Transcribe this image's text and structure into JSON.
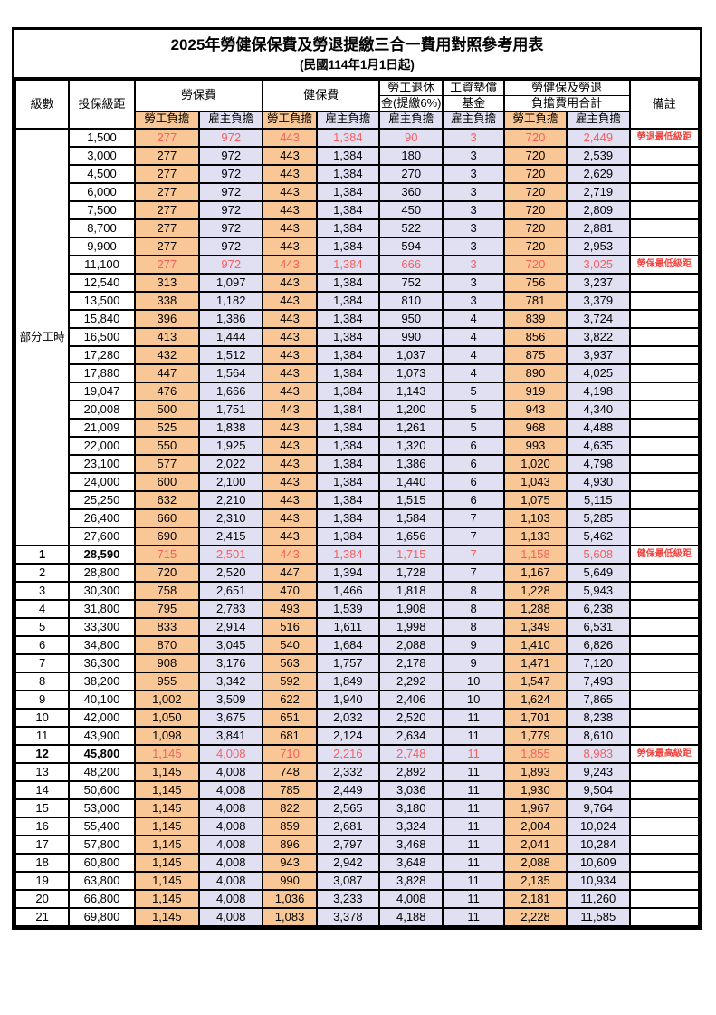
{
  "title": "2025年勞健保保費及勞退提繳三合一費用對照參考用表",
  "subtitle": "(民國114年1月1日起)",
  "colors": {
    "employee_bg": "#F9C795",
    "employer_bg": "#E0E0F2",
    "red_value": "#F75F5F",
    "red_remark": "#F2423D",
    "border": "#000000"
  },
  "header": {
    "level": "級數",
    "bracket": "投保級距",
    "labor_insurance": "勞保費",
    "health_insurance": "健保費",
    "pension_line1": "勞工退休",
    "pension_line2": "金(提繳6%)",
    "wage_fund_line1": "工資墊償",
    "wage_fund_line2": "基金",
    "total_line1": "勞健保及勞退",
    "total_line2": "負擔費用合計",
    "remark": "備註",
    "employee_share": "勞工負擔",
    "employer_share": "雇主負擔"
  },
  "part_time_label": "部分工時",
  "part_time_rowspan": 23,
  "chart_data": {
    "type": "table",
    "title": "2025年勞健保保費及勞退提繳三合一費用對照參考用表",
    "columns": [
      "級數",
      "投保級距",
      "勞保費-勞工負擔",
      "勞保費-雇主負擔",
      "健保費-勞工負擔",
      "健保費-雇主負擔",
      "勞工退休金(提繳6%)-雇主負擔",
      "工資墊償基金-雇主負擔",
      "合計-勞工負擔",
      "合計-雇主負擔",
      "備註"
    ]
  },
  "rows": [
    {
      "level": "",
      "bracket": "1,500",
      "cells": [
        "277",
        "972",
        "443",
        "1,384",
        "90",
        "3",
        "720",
        "2,449"
      ],
      "remark": "勞退最低級距",
      "highlight": true,
      "bold": false
    },
    {
      "level": "",
      "bracket": "3,000",
      "cells": [
        "277",
        "972",
        "443",
        "1,384",
        "180",
        "3",
        "720",
        "2,539"
      ],
      "remark": "",
      "highlight": false,
      "bold": false
    },
    {
      "level": "",
      "bracket": "4,500",
      "cells": [
        "277",
        "972",
        "443",
        "1,384",
        "270",
        "3",
        "720",
        "2,629"
      ],
      "remark": "",
      "highlight": false,
      "bold": false
    },
    {
      "level": "",
      "bracket": "6,000",
      "cells": [
        "277",
        "972",
        "443",
        "1,384",
        "360",
        "3",
        "720",
        "2,719"
      ],
      "remark": "",
      "highlight": false,
      "bold": false
    },
    {
      "level": "",
      "bracket": "7,500",
      "cells": [
        "277",
        "972",
        "443",
        "1,384",
        "450",
        "3",
        "720",
        "2,809"
      ],
      "remark": "",
      "highlight": false,
      "bold": false
    },
    {
      "level": "",
      "bracket": "8,700",
      "cells": [
        "277",
        "972",
        "443",
        "1,384",
        "522",
        "3",
        "720",
        "2,881"
      ],
      "remark": "",
      "highlight": false,
      "bold": false
    },
    {
      "level": "",
      "bracket": "9,900",
      "cells": [
        "277",
        "972",
        "443",
        "1,384",
        "594",
        "3",
        "720",
        "2,953"
      ],
      "remark": "",
      "highlight": false,
      "bold": false
    },
    {
      "level": "",
      "bracket": "11,100",
      "cells": [
        "277",
        "972",
        "443",
        "1,384",
        "666",
        "3",
        "720",
        "3,025"
      ],
      "remark": "勞保最低級距",
      "highlight": true,
      "bold": false
    },
    {
      "level": "",
      "bracket": "12,540",
      "cells": [
        "313",
        "1,097",
        "443",
        "1,384",
        "752",
        "3",
        "756",
        "3,237"
      ],
      "remark": "",
      "highlight": false,
      "bold": false
    },
    {
      "level": "",
      "bracket": "13,500",
      "cells": [
        "338",
        "1,182",
        "443",
        "1,384",
        "810",
        "3",
        "781",
        "3,379"
      ],
      "remark": "",
      "highlight": false,
      "bold": false
    },
    {
      "level": "",
      "bracket": "15,840",
      "cells": [
        "396",
        "1,386",
        "443",
        "1,384",
        "950",
        "4",
        "839",
        "3,724"
      ],
      "remark": "",
      "highlight": false,
      "bold": false
    },
    {
      "level": "",
      "bracket": "16,500",
      "cells": [
        "413",
        "1,444",
        "443",
        "1,384",
        "990",
        "4",
        "856",
        "3,822"
      ],
      "remark": "",
      "highlight": false,
      "bold": false
    },
    {
      "level": "",
      "bracket": "17,280",
      "cells": [
        "432",
        "1,512",
        "443",
        "1,384",
        "1,037",
        "4",
        "875",
        "3,937"
      ],
      "remark": "",
      "highlight": false,
      "bold": false
    },
    {
      "level": "",
      "bracket": "17,880",
      "cells": [
        "447",
        "1,564",
        "443",
        "1,384",
        "1,073",
        "4",
        "890",
        "4,025"
      ],
      "remark": "",
      "highlight": false,
      "bold": false
    },
    {
      "level": "",
      "bracket": "19,047",
      "cells": [
        "476",
        "1,666",
        "443",
        "1,384",
        "1,143",
        "5",
        "919",
        "4,198"
      ],
      "remark": "",
      "highlight": false,
      "bold": false
    },
    {
      "level": "",
      "bracket": "20,008",
      "cells": [
        "500",
        "1,751",
        "443",
        "1,384",
        "1,200",
        "5",
        "943",
        "4,340"
      ],
      "remark": "",
      "highlight": false,
      "bold": false
    },
    {
      "level": "",
      "bracket": "21,009",
      "cells": [
        "525",
        "1,838",
        "443",
        "1,384",
        "1,261",
        "5",
        "968",
        "4,488"
      ],
      "remark": "",
      "highlight": false,
      "bold": false
    },
    {
      "level": "",
      "bracket": "22,000",
      "cells": [
        "550",
        "1,925",
        "443",
        "1,384",
        "1,320",
        "6",
        "993",
        "4,635"
      ],
      "remark": "",
      "highlight": false,
      "bold": false
    },
    {
      "level": "",
      "bracket": "23,100",
      "cells": [
        "577",
        "2,022",
        "443",
        "1,384",
        "1,386",
        "6",
        "1,020",
        "4,798"
      ],
      "remark": "",
      "highlight": false,
      "bold": false
    },
    {
      "level": "",
      "bracket": "24,000",
      "cells": [
        "600",
        "2,100",
        "443",
        "1,384",
        "1,440",
        "6",
        "1,043",
        "4,930"
      ],
      "remark": "",
      "highlight": false,
      "bold": false
    },
    {
      "level": "",
      "bracket": "25,250",
      "cells": [
        "632",
        "2,210",
        "443",
        "1,384",
        "1,515",
        "6",
        "1,075",
        "5,115"
      ],
      "remark": "",
      "highlight": false,
      "bold": false
    },
    {
      "level": "",
      "bracket": "26,400",
      "cells": [
        "660",
        "2,310",
        "443",
        "1,384",
        "1,584",
        "7",
        "1,103",
        "5,285"
      ],
      "remark": "",
      "highlight": false,
      "bold": false
    },
    {
      "level": "",
      "bracket": "27,600",
      "cells": [
        "690",
        "2,415",
        "443",
        "1,384",
        "1,656",
        "7",
        "1,133",
        "5,462"
      ],
      "remark": "",
      "highlight": false,
      "bold": false
    },
    {
      "level": "1",
      "bracket": "28,590",
      "cells": [
        "715",
        "2,501",
        "443",
        "1,384",
        "1,715",
        "7",
        "1,158",
        "5,608"
      ],
      "remark": "健保最低級距",
      "highlight": true,
      "bold": true
    },
    {
      "level": "2",
      "bracket": "28,800",
      "cells": [
        "720",
        "2,520",
        "447",
        "1,394",
        "1,728",
        "7",
        "1,167",
        "5,649"
      ],
      "remark": "",
      "highlight": false,
      "bold": false
    },
    {
      "level": "3",
      "bracket": "30,300",
      "cells": [
        "758",
        "2,651",
        "470",
        "1,466",
        "1,818",
        "8",
        "1,228",
        "5,943"
      ],
      "remark": "",
      "highlight": false,
      "bold": false
    },
    {
      "level": "4",
      "bracket": "31,800",
      "cells": [
        "795",
        "2,783",
        "493",
        "1,539",
        "1,908",
        "8",
        "1,288",
        "6,238"
      ],
      "remark": "",
      "highlight": false,
      "bold": false
    },
    {
      "level": "5",
      "bracket": "33,300",
      "cells": [
        "833",
        "2,914",
        "516",
        "1,611",
        "1,998",
        "8",
        "1,349",
        "6,531"
      ],
      "remark": "",
      "highlight": false,
      "bold": false
    },
    {
      "level": "6",
      "bracket": "34,800",
      "cells": [
        "870",
        "3,045",
        "540",
        "1,684",
        "2,088",
        "9",
        "1,410",
        "6,826"
      ],
      "remark": "",
      "highlight": false,
      "bold": false
    },
    {
      "level": "7",
      "bracket": "36,300",
      "cells": [
        "908",
        "3,176",
        "563",
        "1,757",
        "2,178",
        "9",
        "1,471",
        "7,120"
      ],
      "remark": "",
      "highlight": false,
      "bold": false
    },
    {
      "level": "8",
      "bracket": "38,200",
      "cells": [
        "955",
        "3,342",
        "592",
        "1,849",
        "2,292",
        "10",
        "1,547",
        "7,493"
      ],
      "remark": "",
      "highlight": false,
      "bold": false
    },
    {
      "level": "9",
      "bracket": "40,100",
      "cells": [
        "1,002",
        "3,509",
        "622",
        "1,940",
        "2,406",
        "10",
        "1,624",
        "7,865"
      ],
      "remark": "",
      "highlight": false,
      "bold": false
    },
    {
      "level": "10",
      "bracket": "42,000",
      "cells": [
        "1,050",
        "3,675",
        "651",
        "2,032",
        "2,520",
        "11",
        "1,701",
        "8,238"
      ],
      "remark": "",
      "highlight": false,
      "bold": false
    },
    {
      "level": "11",
      "bracket": "43,900",
      "cells": [
        "1,098",
        "3,841",
        "681",
        "2,124",
        "2,634",
        "11",
        "1,779",
        "8,610"
      ],
      "remark": "",
      "highlight": false,
      "bold": false
    },
    {
      "level": "12",
      "bracket": "45,800",
      "cells": [
        "1,145",
        "4,008",
        "710",
        "2,216",
        "2,748",
        "11",
        "1,855",
        "8,983"
      ],
      "remark": "勞保最高級距",
      "highlight": true,
      "bold": true
    },
    {
      "level": "13",
      "bracket": "48,200",
      "cells": [
        "1,145",
        "4,008",
        "748",
        "2,332",
        "2,892",
        "11",
        "1,893",
        "9,243"
      ],
      "remark": "",
      "highlight": false,
      "bold": false
    },
    {
      "level": "14",
      "bracket": "50,600",
      "cells": [
        "1,145",
        "4,008",
        "785",
        "2,449",
        "3,036",
        "11",
        "1,930",
        "9,504"
      ],
      "remark": "",
      "highlight": false,
      "bold": false
    },
    {
      "level": "15",
      "bracket": "53,000",
      "cells": [
        "1,145",
        "4,008",
        "822",
        "2,565",
        "3,180",
        "11",
        "1,967",
        "9,764"
      ],
      "remark": "",
      "highlight": false,
      "bold": false
    },
    {
      "level": "16",
      "bracket": "55,400",
      "cells": [
        "1,145",
        "4,008",
        "859",
        "2,681",
        "3,324",
        "11",
        "2,004",
        "10,024"
      ],
      "remark": "",
      "highlight": false,
      "bold": false
    },
    {
      "level": "17",
      "bracket": "57,800",
      "cells": [
        "1,145",
        "4,008",
        "896",
        "2,797",
        "3,468",
        "11",
        "2,041",
        "10,284"
      ],
      "remark": "",
      "highlight": false,
      "bold": false
    },
    {
      "level": "18",
      "bracket": "60,800",
      "cells": [
        "1,145",
        "4,008",
        "943",
        "2,942",
        "3,648",
        "11",
        "2,088",
        "10,609"
      ],
      "remark": "",
      "highlight": false,
      "bold": false
    },
    {
      "level": "19",
      "bracket": "63,800",
      "cells": [
        "1,145",
        "4,008",
        "990",
        "3,087",
        "3,828",
        "11",
        "2,135",
        "10,934"
      ],
      "remark": "",
      "highlight": false,
      "bold": false
    },
    {
      "level": "20",
      "bracket": "66,800",
      "cells": [
        "1,145",
        "4,008",
        "1,036",
        "3,233",
        "4,008",
        "11",
        "2,181",
        "11,260"
      ],
      "remark": "",
      "highlight": false,
      "bold": false
    },
    {
      "level": "21",
      "bracket": "69,800",
      "cells": [
        "1,145",
        "4,008",
        "1,083",
        "3,378",
        "4,188",
        "11",
        "2,228",
        "11,585"
      ],
      "remark": "",
      "highlight": false,
      "bold": false
    }
  ]
}
